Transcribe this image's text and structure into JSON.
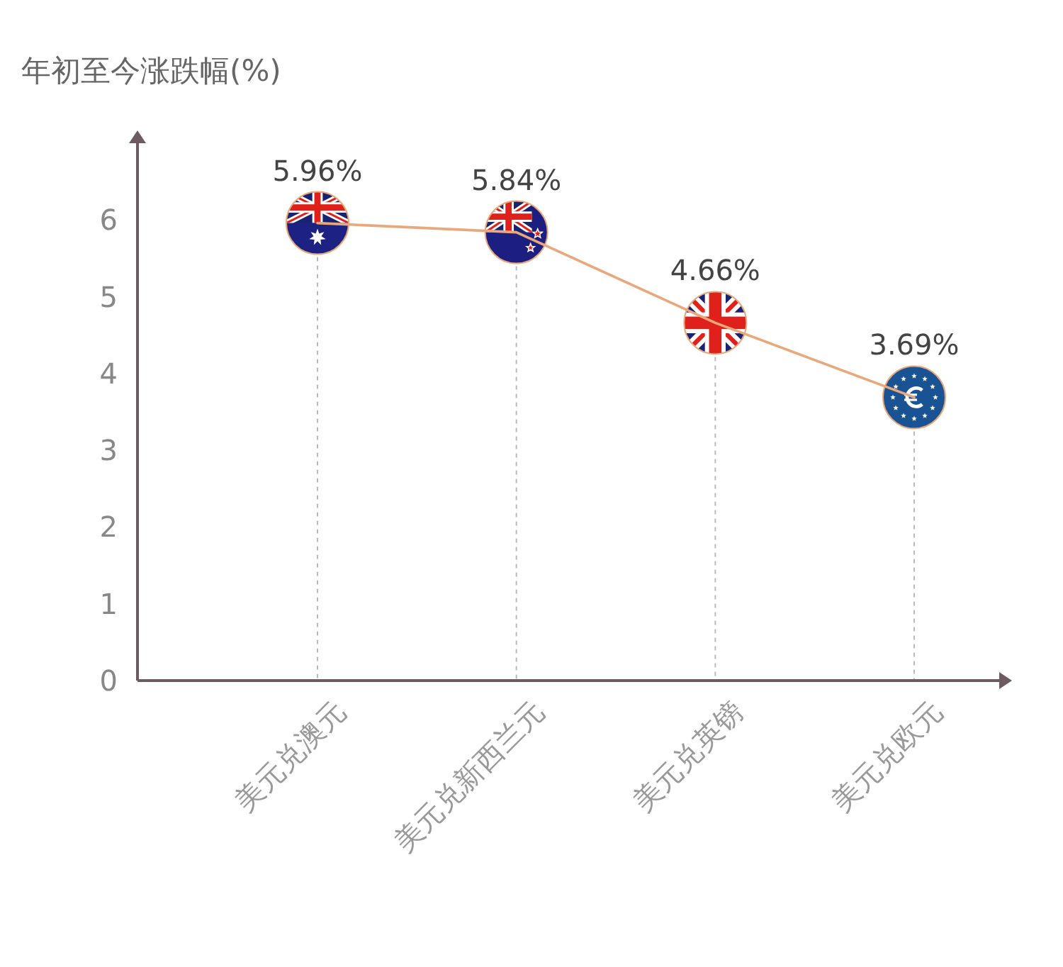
{
  "chart_data": {
    "type": "line",
    "ylabel": "年初至今涨跌幅(%)",
    "categories": [
      "美元兑澳元",
      "美元兑新西兰元",
      "美元兑英镑",
      "美元兑欧元"
    ],
    "series": [
      {
        "color": "#e8a87c",
        "values": [
          5.96,
          5.84,
          4.66,
          3.69
        ],
        "value_labels": [
          "5.96%",
          "5.84%",
          "4.66%",
          "3.69%"
        ]
      }
    ],
    "ylim": [
      0,
      7
    ],
    "yticks": [
      0,
      1,
      2,
      3,
      4,
      5,
      6
    ],
    "grid": "x",
    "marker": "circle",
    "line_style": "solid"
  }
}
